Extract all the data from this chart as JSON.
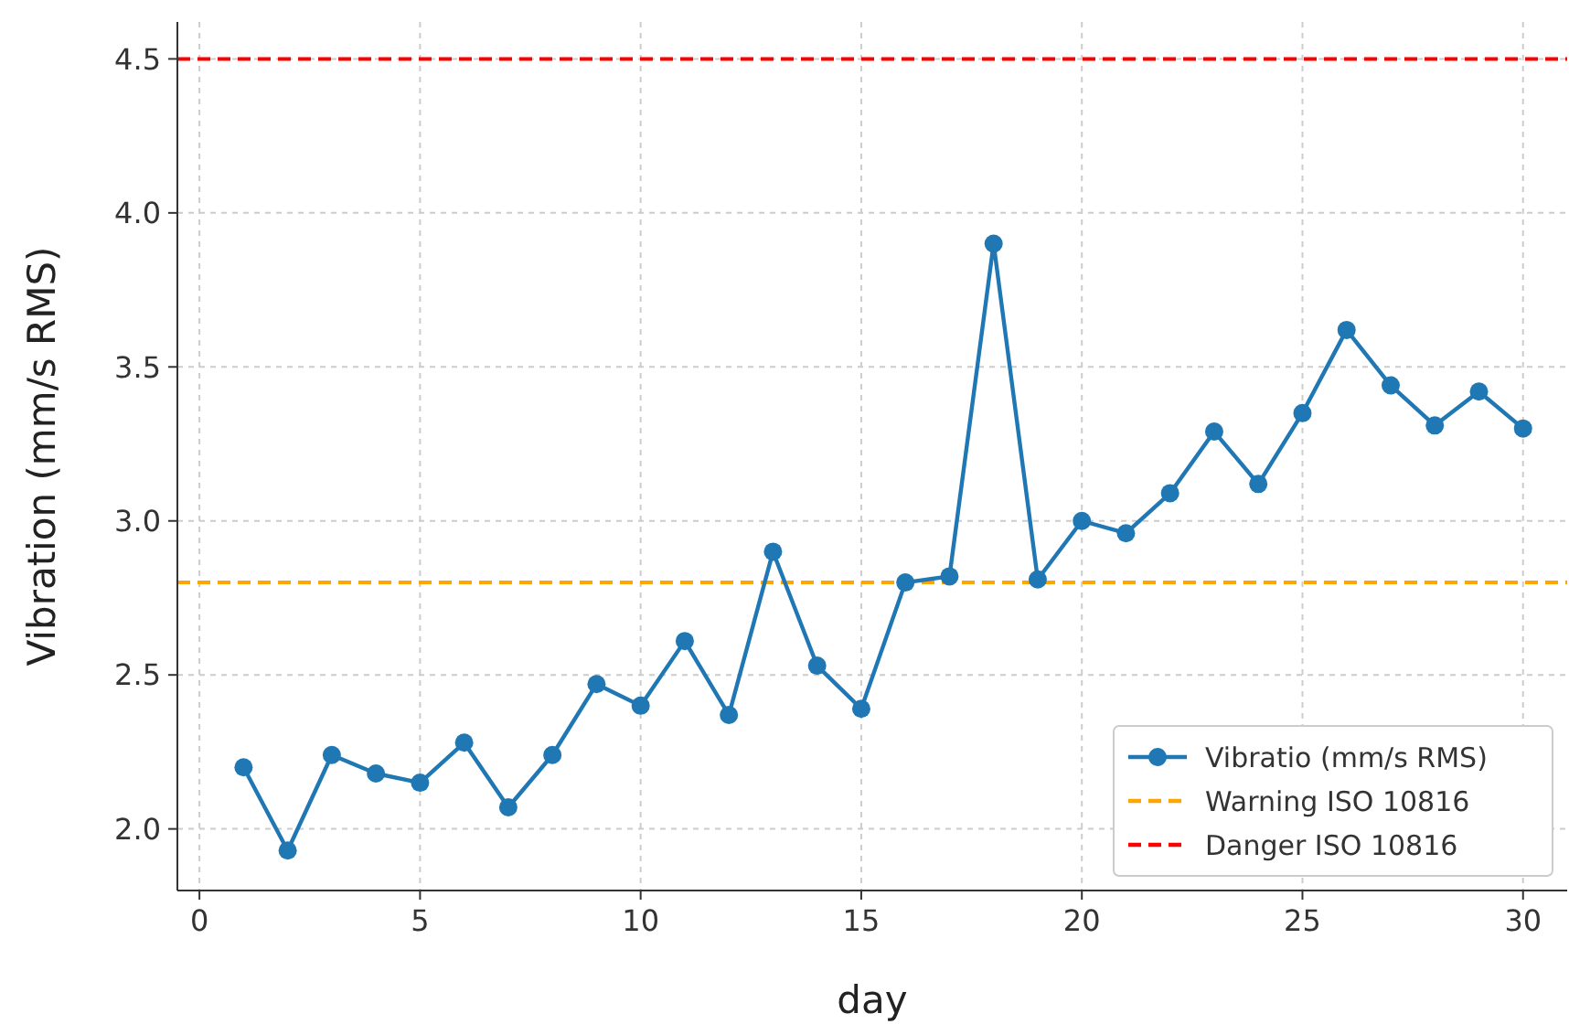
{
  "chart_data": {
    "type": "line",
    "xlabel": "day",
    "ylabel": "Vibration (mm/s RMS)",
    "x": [
      1,
      2,
      3,
      4,
      5,
      6,
      7,
      8,
      9,
      10,
      11,
      12,
      13,
      14,
      15,
      16,
      17,
      18,
      19,
      20,
      21,
      22,
      23,
      24,
      25,
      26,
      27,
      28,
      29,
      30
    ],
    "series": [
      {
        "name": "Vibratio (mm/s RMS)",
        "color": "#1f77b4",
        "values": [
          2.2,
          1.93,
          2.24,
          2.18,
          2.15,
          2.28,
          2.07,
          2.24,
          2.47,
          2.4,
          2.61,
          2.37,
          2.9,
          2.53,
          2.39,
          2.8,
          2.82,
          3.9,
          2.81,
          3.0,
          2.96,
          3.09,
          3.29,
          3.12,
          3.35,
          3.62,
          3.44,
          3.31,
          3.42,
          3.3
        ]
      }
    ],
    "xlim": [
      -0.5,
      31
    ],
    "ylim": [
      1.8,
      4.62
    ],
    "xticks": [
      0,
      5,
      10,
      15,
      20,
      25,
      30
    ],
    "yticks": [
      {
        "value": 2,
        "label": "2.0"
      },
      {
        "value": 2.5,
        "label": "2.5"
      },
      {
        "value": 3,
        "label": "3.0"
      },
      {
        "value": 3.5,
        "label": "3.5"
      },
      {
        "value": 4,
        "label": "4.0"
      },
      {
        "value": 4.5,
        "label": "4.5"
      }
    ],
    "ref_lines": [
      {
        "axis": "y",
        "value": 2.8,
        "label": "Warning ISO 10816",
        "color": "#ffa500",
        "line_style": "dashed"
      },
      {
        "axis": "y",
        "value": 4.5,
        "label": "Danger ISO 10816",
        "color": "#ff0000",
        "line_style": "dashed"
      }
    ],
    "grid": true,
    "legend": "bottom right",
    "marker": "circle",
    "line_style": "solid"
  }
}
